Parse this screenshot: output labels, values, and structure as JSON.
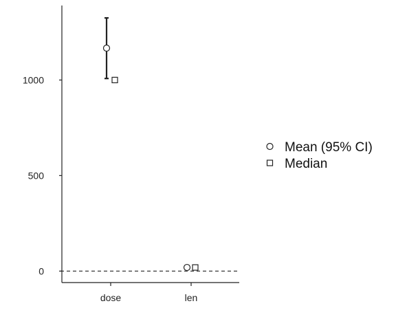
{
  "chart_data": {
    "type": "scatter",
    "categories": [
      "dose",
      "len"
    ],
    "y_ticks": [
      0,
      500,
      1000
    ],
    "ylim": [
      -60,
      1390
    ],
    "reference_line": {
      "y": 0,
      "style": "dashed"
    },
    "grid": false,
    "legend_position": "right",
    "legend": {
      "mean_label": "Mean (95% CI)",
      "median_label": "Median"
    },
    "series": [
      {
        "name": "Mean (95% CI)",
        "marker": "circle",
        "values": [
          1167,
          19
        ],
        "ci_low": [
          1008,
          17
        ],
        "ci_high": [
          1325,
          21
        ]
      },
      {
        "name": "Median",
        "marker": "square",
        "values": [
          1000,
          19
        ]
      }
    ],
    "colors": {
      "axis": "#222222",
      "marker_stroke": "#222222",
      "marker_fill": "#ffffff"
    }
  }
}
